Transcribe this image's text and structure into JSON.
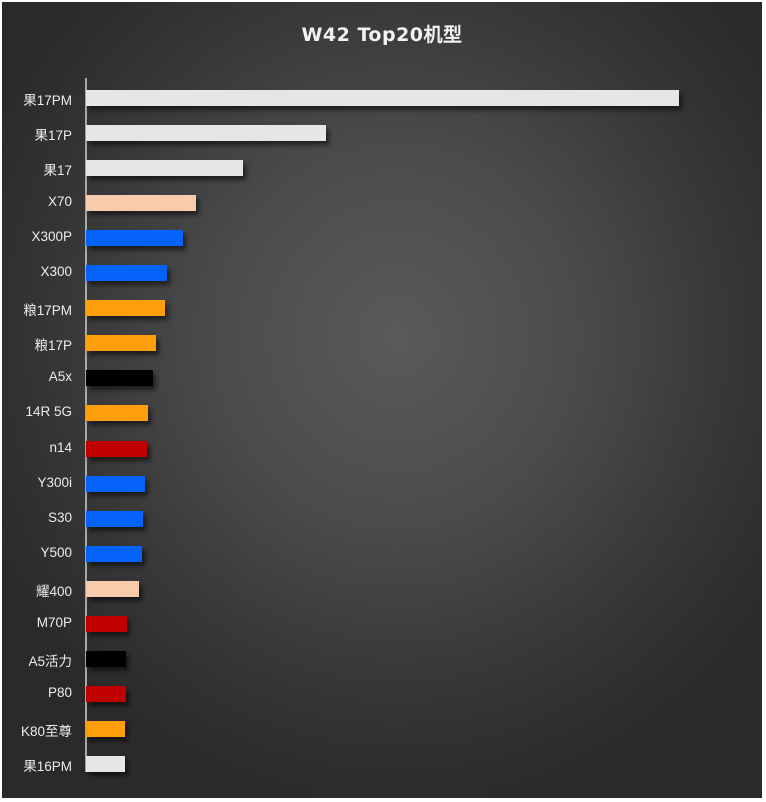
{
  "chart_data": {
    "type": "bar",
    "orientation": "horizontal",
    "title": "W42 Top20机型",
    "xlabel": "",
    "ylabel": "",
    "grid": false,
    "legend": null,
    "value_unit": "relative bar length (px, no axis scale shown)",
    "categories": [
      "果17PM",
      "果17P",
      "果17",
      "X70",
      "X300P",
      "X300",
      "粮17PM",
      "粮17P",
      "A5x",
      "14R 5G",
      "n14",
      "Y300i",
      "S30",
      "Y500",
      "耀400",
      "M70P",
      "A5活力",
      "P80",
      "K80至尊",
      "果16PM"
    ],
    "values": [
      593,
      240,
      157,
      110,
      97,
      81,
      79,
      70,
      67,
      62,
      61,
      59,
      57,
      56,
      53,
      41,
      40,
      40,
      39,
      39
    ],
    "colors": [
      "#e6e6e6",
      "#e6e6e6",
      "#e6e6e6",
      "#f8cbad",
      "#0563fa",
      "#0563fa",
      "#ff9e0b",
      "#ff9e0b",
      "#000000",
      "#ff9e0b",
      "#c00000",
      "#0563fa",
      "#0563fa",
      "#0563fa",
      "#f8cbad",
      "#c00000",
      "#000000",
      "#c00000",
      "#ff9e0b",
      "#e6e6e6"
    ]
  }
}
